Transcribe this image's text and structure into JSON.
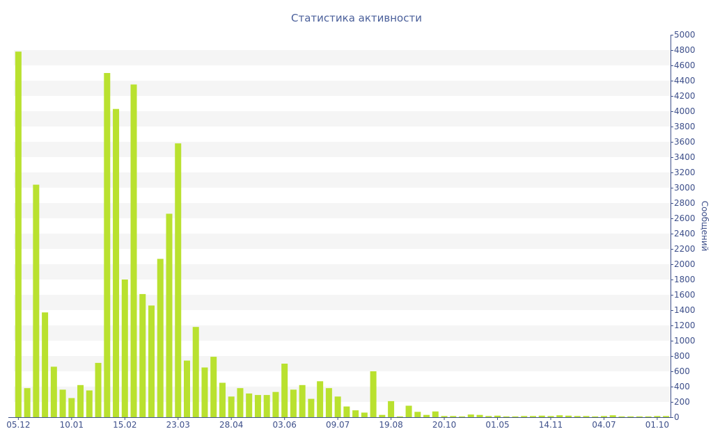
{
  "chart_data": {
    "type": "bar",
    "title": "Статистика активности",
    "xlabel": "",
    "ylabel": "Сообщений",
    "ylim": [
      0,
      5000
    ],
    "ytick_step": 200,
    "y_axis_side": "right",
    "grid": "alternating horizontal bands",
    "bar_color": "#b9e12f",
    "band_color": "#f5f5f5",
    "text_color": "#3d4f8a",
    "x_ticks": [
      {
        "label": "05.12",
        "index": 0
      },
      {
        "label": "10.01",
        "index": 6
      },
      {
        "label": "15.02",
        "index": 12
      },
      {
        "label": "23.03",
        "index": 18
      },
      {
        "label": "28.04",
        "index": 24
      },
      {
        "label": "03.06",
        "index": 30
      },
      {
        "label": "09.07",
        "index": 36
      },
      {
        "label": "19.08",
        "index": 42
      },
      {
        "label": "20.10",
        "index": 48
      },
      {
        "label": "01.05",
        "index": 54
      },
      {
        "label": "14.11",
        "index": 60
      },
      {
        "label": "04.07",
        "index": 66
      },
      {
        "label": "01.10",
        "index": 72
      }
    ],
    "values": [
      4780,
      380,
      3040,
      1370,
      660,
      360,
      250,
      420,
      350,
      710,
      4500,
      4030,
      1800,
      4350,
      1610,
      1460,
      2070,
      2660,
      3580,
      740,
      1180,
      650,
      790,
      450,
      270,
      380,
      310,
      290,
      290,
      330,
      700,
      360,
      420,
      240,
      470,
      380,
      270,
      140,
      90,
      60,
      600,
      30,
      210,
      10,
      150,
      70,
      30,
      75,
      15,
      15,
      10,
      35,
      30,
      15,
      20,
      10,
      10,
      15,
      15,
      20,
      15,
      25,
      20,
      15,
      15,
      10,
      15,
      25,
      10,
      10,
      10,
      10,
      15,
      15
    ]
  }
}
